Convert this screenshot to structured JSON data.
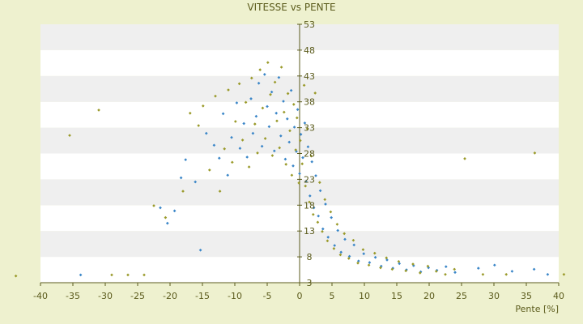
{
  "chart_data": {
    "type": "scatter",
    "title": "VITESSE vs PENTE",
    "xlabel": "Pente [%]",
    "ylabel": "",
    "xlim": [
      -40,
      40
    ],
    "ylim": [
      3,
      53
    ],
    "x_ticks": [
      "-40",
      "-35",
      "-30",
      "-25",
      "-20",
      "-15",
      "-10",
      "-5",
      "0",
      "5",
      "10",
      "15",
      "20",
      "25",
      "30",
      "35",
      "40"
    ],
    "y_ticks": [
      "3",
      "8",
      "13",
      "18",
      "23",
      "28",
      "33",
      "38",
      "43",
      "48",
      "53"
    ],
    "grid": true,
    "legend": "none",
    "colors": {
      "background": "#eef1cf",
      "band_light": "#ffffff",
      "band_dark": "#efefef",
      "axis": "#5b5b1c",
      "series_a": "#3a86c8",
      "series_b": "#9a9a2a"
    },
    "series": [
      {
        "marker_color": "#3a86c8",
        "points": [
          [
            -33.8,
            4.5
          ],
          [
            -21.5,
            17.5
          ],
          [
            -20.4,
            14.5
          ],
          [
            -19.3,
            16.9
          ],
          [
            -18.3,
            23.3
          ],
          [
            -17.6,
            26.8
          ],
          [
            -16.1,
            22.5
          ],
          [
            -15.3,
            9.3
          ],
          [
            -14.4,
            31.9
          ],
          [
            -13.2,
            29.6
          ],
          [
            -12.4,
            27.1
          ],
          [
            -11.8,
            35.7
          ],
          [
            -11.1,
            23.8
          ],
          [
            -10.5,
            31.1
          ],
          [
            -9.7,
            37.8
          ],
          [
            -9.2,
            29.0
          ],
          [
            -8.6,
            33.8
          ],
          [
            -8.1,
            27.3
          ],
          [
            -7.5,
            38.6
          ],
          [
            -7.2,
            31.9
          ],
          [
            -6.7,
            35.2
          ],
          [
            -6.3,
            41.6
          ],
          [
            -5.8,
            29.4
          ],
          [
            -5.4,
            43.3
          ],
          [
            -5.0,
            37.1
          ],
          [
            -4.7,
            33.2
          ],
          [
            -4.3,
            39.9
          ],
          [
            -3.9,
            28.5
          ],
          [
            -3.6,
            35.8
          ],
          [
            -3.2,
            42.7
          ],
          [
            -2.9,
            31.4
          ],
          [
            -2.5,
            38.1
          ],
          [
            -2.2,
            26.9
          ],
          [
            -1.9,
            34.7
          ],
          [
            -1.6,
            30.2
          ],
          [
            -1.3,
            40.2
          ],
          [
            -1.0,
            25.6
          ],
          [
            -0.8,
            33.1
          ],
          [
            -0.5,
            28.4
          ],
          [
            -0.3,
            36.5
          ],
          [
            0.0,
            24.1
          ],
          [
            0.2,
            31.7
          ],
          [
            0.5,
            27.2
          ],
          [
            0.8,
            33.9
          ],
          [
            1.0,
            22.6
          ],
          [
            1.3,
            29.3
          ],
          [
            1.6,
            19.8
          ],
          [
            1.9,
            26.4
          ],
          [
            2.2,
            17.5
          ],
          [
            2.5,
            23.7
          ],
          [
            2.9,
            15.9
          ],
          [
            3.2,
            20.8
          ],
          [
            3.6,
            13.4
          ],
          [
            4.0,
            18.2
          ],
          [
            4.4,
            11.8
          ],
          [
            4.9,
            15.6
          ],
          [
            5.4,
            10.2
          ],
          [
            5.9,
            13.1
          ],
          [
            6.4,
            8.9
          ],
          [
            7.0,
            11.4
          ],
          [
            7.7,
            8.1
          ],
          [
            8.4,
            10.3
          ],
          [
            9.1,
            7.2
          ],
          [
            9.9,
            8.6
          ],
          [
            10.8,
            6.9
          ],
          [
            11.7,
            7.9
          ],
          [
            12.6,
            6.2
          ],
          [
            13.5,
            7.4
          ],
          [
            14.4,
            5.8
          ],
          [
            15.4,
            6.7
          ],
          [
            16.5,
            5.5
          ],
          [
            17.6,
            6.3
          ],
          [
            18.7,
            5.1
          ],
          [
            19.9,
            5.9
          ],
          [
            21.2,
            5.4
          ],
          [
            22.6,
            6.1
          ],
          [
            24.0,
            5.0
          ],
          [
            27.6,
            5.8
          ],
          [
            30.1,
            6.4
          ],
          [
            32.8,
            5.2
          ],
          [
            36.2,
            5.6
          ],
          [
            38.3,
            4.6
          ]
        ]
      },
      {
        "marker_color": "#9a9a2a",
        "points": [
          [
            -43.8,
            4.3
          ],
          [
            -35.5,
            31.5
          ],
          [
            -31.0,
            36.4
          ],
          [
            -29.0,
            4.5
          ],
          [
            -26.5,
            4.5
          ],
          [
            -24.0,
            4.5
          ],
          [
            -22.5,
            17.9
          ],
          [
            -20.7,
            15.6
          ],
          [
            -18.0,
            20.7
          ],
          [
            -16.9,
            35.8
          ],
          [
            -15.6,
            33.4
          ],
          [
            -14.9,
            37.2
          ],
          [
            -13.9,
            24.8
          ],
          [
            -13.0,
            39.1
          ],
          [
            -12.3,
            20.7
          ],
          [
            -11.6,
            28.9
          ],
          [
            -11.0,
            40.3
          ],
          [
            -10.4,
            26.3
          ],
          [
            -9.9,
            34.2
          ],
          [
            -9.3,
            41.5
          ],
          [
            -8.8,
            30.6
          ],
          [
            -8.3,
            37.9
          ],
          [
            -7.8,
            25.4
          ],
          [
            -7.4,
            42.6
          ],
          [
            -6.9,
            33.7
          ],
          [
            -6.5,
            28.1
          ],
          [
            -6.1,
            44.2
          ],
          [
            -5.7,
            36.8
          ],
          [
            -5.3,
            30.9
          ],
          [
            -4.9,
            45.6
          ],
          [
            -4.5,
            39.4
          ],
          [
            -4.2,
            27.6
          ],
          [
            -3.8,
            41.8
          ],
          [
            -3.5,
            34.3
          ],
          [
            -3.1,
            29.1
          ],
          [
            -2.8,
            44.7
          ],
          [
            -2.4,
            36.0
          ],
          [
            -2.1,
            25.9
          ],
          [
            -1.8,
            39.6
          ],
          [
            -1.5,
            32.4
          ],
          [
            -1.2,
            23.8
          ],
          [
            -0.9,
            37.5
          ],
          [
            -0.6,
            28.7
          ],
          [
            -0.4,
            34.9
          ],
          [
            -0.1,
            22.3
          ],
          [
            0.1,
            30.5
          ],
          [
            0.4,
            26.0
          ],
          [
            0.7,
            41.2
          ],
          [
            0.9,
            21.7
          ],
          [
            1.2,
            32.8
          ],
          [
            1.5,
            18.6
          ],
          [
            1.8,
            27.5
          ],
          [
            2.1,
            16.2
          ],
          [
            2.4,
            39.7
          ],
          [
            2.8,
            14.7
          ],
          [
            3.1,
            22.4
          ],
          [
            3.5,
            12.9
          ],
          [
            3.9,
            19.1
          ],
          [
            4.3,
            11.1
          ],
          [
            4.8,
            16.7
          ],
          [
            5.3,
            9.6
          ],
          [
            5.8,
            14.3
          ],
          [
            6.3,
            8.4
          ],
          [
            6.9,
            12.5
          ],
          [
            7.6,
            7.7
          ],
          [
            8.3,
            11.2
          ],
          [
            9.0,
            6.8
          ],
          [
            9.8,
            9.4
          ],
          [
            10.7,
            6.4
          ],
          [
            11.6,
            8.7
          ],
          [
            12.5,
            5.9
          ],
          [
            13.4,
            7.8
          ],
          [
            14.3,
            5.6
          ],
          [
            15.3,
            7.1
          ],
          [
            16.4,
            5.3
          ],
          [
            17.5,
            6.6
          ],
          [
            18.6,
            4.9
          ],
          [
            19.8,
            6.2
          ],
          [
            21.1,
            5.2
          ],
          [
            22.5,
            4.6
          ],
          [
            23.9,
            5.6
          ],
          [
            25.5,
            27.0
          ],
          [
            28.3,
            4.6
          ],
          [
            31.9,
            4.6
          ],
          [
            36.3,
            28.1
          ],
          [
            40.8,
            4.6
          ]
        ]
      }
    ]
  }
}
